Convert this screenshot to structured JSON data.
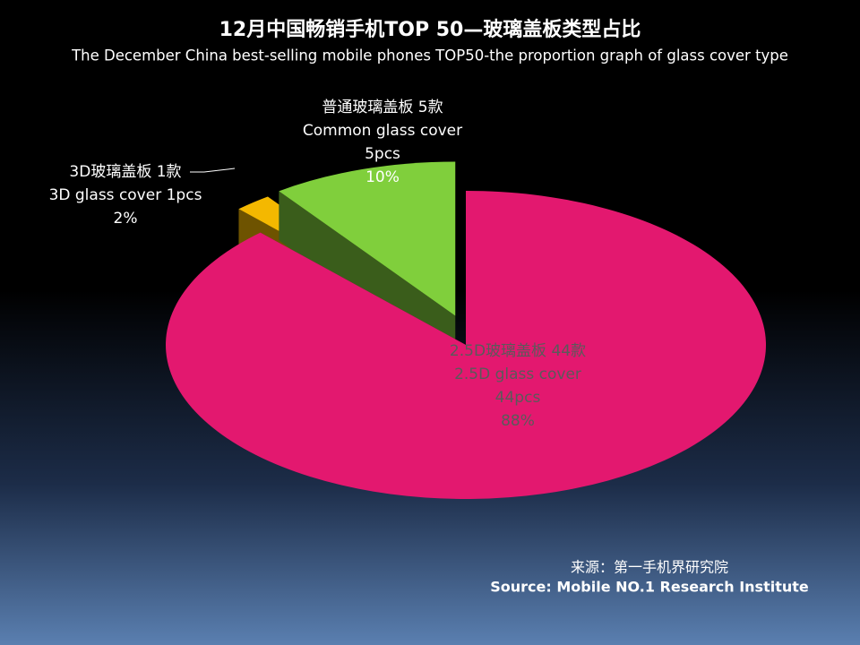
{
  "chart_data": {
    "type": "pie",
    "title": "12月中国畅销手机TOP 50—玻璃盖板类型占比",
    "subtitle": "The December China best-selling mobile phones TOP50-the proportion graph of glass cover type",
    "names_cn": [
      "2.5D玻璃盖板",
      "3D玻璃盖板",
      "普通玻璃盖板"
    ],
    "names_en": [
      "2.5D glass cover",
      "3D glass cover",
      "Common glass cover"
    ],
    "counts": [
      44,
      1,
      5
    ],
    "count_labels_cn": [
      "44款",
      "1款",
      "5款"
    ],
    "count_labels_en": [
      "44pcs",
      "1pcs",
      "5pcs"
    ],
    "values": [
      88,
      2,
      10
    ],
    "value_labels": [
      "88%",
      "2%",
      "10%"
    ],
    "colors": [
      "#e3186f",
      "#f4b800",
      "#80cf3c"
    ],
    "source_cn": "来源：第一手机界研究院",
    "source_en": "Source: Mobile NO.1 Research Institute"
  }
}
